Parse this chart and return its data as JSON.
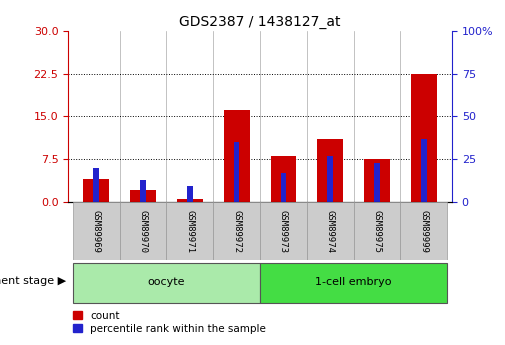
{
  "title": "GDS2387 / 1438127_at",
  "samples": [
    "GSM89969",
    "GSM89970",
    "GSM89971",
    "GSM89972",
    "GSM89973",
    "GSM89974",
    "GSM89975",
    "GSM89999"
  ],
  "count_values": [
    4.0,
    2.0,
    0.5,
    16.2,
    8.0,
    11.0,
    7.5,
    22.5
  ],
  "percentile_values": [
    20,
    13,
    9,
    35,
    17,
    27,
    23,
    37
  ],
  "left_ylim": [
    0,
    30
  ],
  "right_ylim": [
    0,
    100
  ],
  "left_yticks": [
    0,
    7.5,
    15,
    22.5,
    30
  ],
  "right_yticks": [
    0,
    25,
    50,
    75,
    100
  ],
  "bar_color_red": "#cc0000",
  "bar_color_blue": "#2222cc",
  "red_bar_width": 0.55,
  "blue_bar_width": 0.12,
  "groups": [
    {
      "label": "oocyte",
      "indices": [
        0,
        1,
        2,
        3
      ],
      "color": "#aaeaaa"
    },
    {
      "label": "1-cell embryo",
      "indices": [
        4,
        5,
        6,
        7
      ],
      "color": "#44dd44"
    }
  ],
  "group_label_text": "development stage",
  "tick_bg_color": "#cccccc",
  "legend_count_label": "count",
  "legend_percentile_label": "percentile rank within the sample",
  "grid_color": "black",
  "left_axis_color": "#cc0000",
  "right_axis_color": "#2222cc"
}
